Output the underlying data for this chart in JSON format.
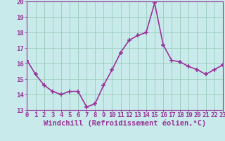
{
  "x": [
    0,
    1,
    2,
    3,
    4,
    5,
    6,
    7,
    8,
    9,
    10,
    11,
    12,
    13,
    14,
    15,
    16,
    17,
    18,
    19,
    20,
    21,
    22,
    23
  ],
  "y": [
    16.2,
    15.3,
    14.6,
    14.2,
    14.0,
    14.2,
    14.2,
    13.2,
    13.4,
    14.6,
    15.6,
    16.7,
    17.5,
    17.8,
    18.0,
    19.9,
    17.2,
    16.2,
    16.1,
    15.8,
    15.6,
    15.3,
    15.6,
    15.9
  ],
  "line_color": "#993399",
  "marker": "+",
  "marker_size": 4,
  "marker_lw": 1.2,
  "background_color": "#c8eaea",
  "grid_color": "#99ccbb",
  "xlabel": "Windchill (Refroidissement éolien,°C)",
  "ylim": [
    13,
    20
  ],
  "xlim": [
    0,
    23
  ],
  "yticks": [
    13,
    14,
    15,
    16,
    17,
    18,
    19,
    20
  ],
  "xticks": [
    0,
    1,
    2,
    3,
    4,
    5,
    6,
    7,
    8,
    9,
    10,
    11,
    12,
    13,
    14,
    15,
    16,
    17,
    18,
    19,
    20,
    21,
    22,
    23
  ],
  "tick_color": "#993399",
  "axis_color": "#993399",
  "label_fontsize": 7.5,
  "tick_fontsize": 6.5,
  "line_width": 1.2
}
